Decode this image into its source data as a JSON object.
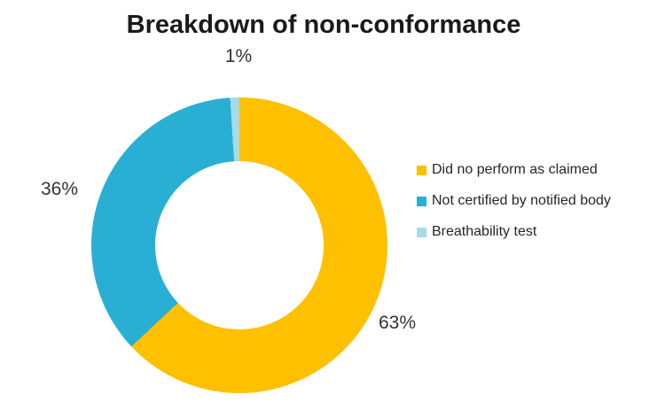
{
  "chart_data": {
    "type": "pie",
    "subtype": "doughnut",
    "title": "Breakdown of non-conformance",
    "categories": [
      "Did no perform as claimed",
      "Not certified by notified body",
      "Breathability test"
    ],
    "values": [
      63,
      36,
      1
    ],
    "unit": "percent",
    "colors": [
      "#FFC000",
      "#29AFD4",
      "#A6DBEA"
    ],
    "start_angle_deg": 0,
    "direction": "clockwise",
    "inner_radius_ratio": 0.57,
    "legend_position": "right",
    "grid": false,
    "data_labels": [
      "63%",
      "36%",
      "1%"
    ]
  },
  "title": "Breakdown of non-conformance",
  "labels": {
    "yellow_slice": "63%",
    "teal_slice": "36%",
    "light_slice": "1%"
  },
  "legend": {
    "items": [
      {
        "label": "Did no perform as claimed",
        "color": "#FFC000"
      },
      {
        "label": "Not certified by notified body",
        "color": "#29AFD4"
      },
      {
        "label": "Breathability test",
        "color": "#A6DBEA"
      }
    ]
  }
}
